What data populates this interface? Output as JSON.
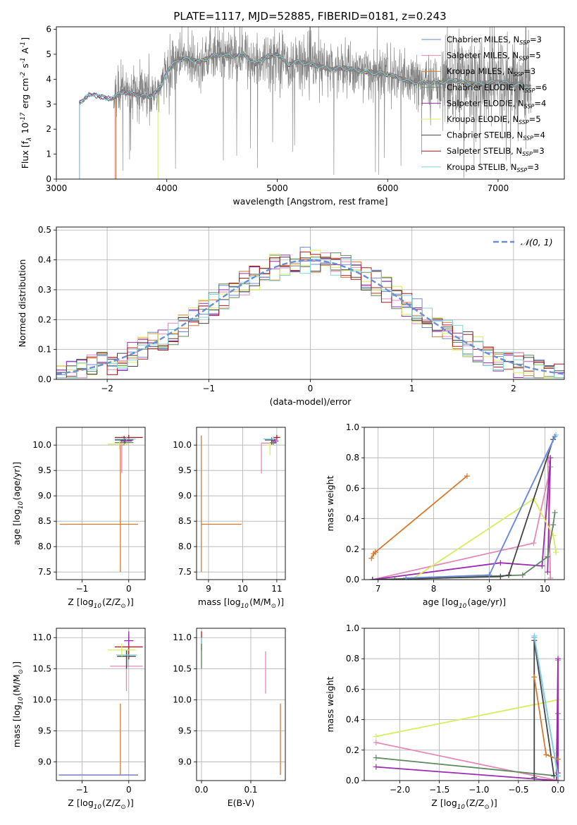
{
  "figure": {
    "title": "PLATE=1117, MJD=52885, FIBERID=0181, z=0.243"
  },
  "colors": {
    "Chabrier MILES": "#6f88d6",
    "Salpeter MILES": "#e48ab7",
    "Kroupa MILES": "#d47a2e",
    "Chabrier ELODIE": "#5c8a5e",
    "Salpeter ELODIE": "#9a2cb0",
    "Kroupa ELODIE": "#d8ec5c",
    "Chabrier STELIB": "#444444",
    "Salpeter STELIB": "#a41c1c",
    "Kroupa STELIB": "#7fd3df",
    "data": "#808080",
    "gauss": "#6a8ed6"
  },
  "chart_data": [
    {
      "id": "spectrum",
      "type": "line",
      "xlabel": "wavelength [Angstrom, rest frame]",
      "ylabel": "Flux [f$_\\lambda$ 10$^{-17}$ erg cm$^{-2}$ s$^{-1}$ A$^{-1}$]",
      "xlim": [
        3000,
        7600
      ],
      "ylim": [
        0,
        6.1
      ],
      "xticks": [
        "3000",
        "4000",
        "5000",
        "6000",
        "7000"
      ],
      "yticks": [
        "0",
        "1",
        "2",
        "3",
        "4",
        "5",
        "6"
      ],
      "legend": [
        {
          "name": "Chabrier MILES",
          "label": "Chabrier MILES, N",
          "sub": "SSP",
          "post": "=3"
        },
        {
          "name": "Salpeter MILES",
          "label": "Salpeter MILES, N",
          "sub": "SSP",
          "post": "=5"
        },
        {
          "name": "Kroupa MILES",
          "label": "Kroupa MILES, N",
          "sub": "SSP",
          "post": "=3"
        },
        {
          "name": "Chabrier ELODIE",
          "label": "Chabrier ELODIE, N",
          "sub": "SSP",
          "post": "=6"
        },
        {
          "name": "Salpeter ELODIE",
          "label": "Salpeter ELODIE, N",
          "sub": "SSP",
          "post": "=4"
        },
        {
          "name": "Kroupa ELODIE",
          "label": "Kroupa ELODIE, N",
          "sub": "SSP",
          "post": "=5"
        },
        {
          "name": "Chabrier STELIB",
          "label": "Chabrier STELIB, N",
          "sub": "SSP",
          "post": "=4"
        },
        {
          "name": "Salpeter STELIB",
          "label": "Salpeter STELIB, N",
          "sub": "SSP",
          "post": "=3"
        },
        {
          "name": "Kroupa STELIB",
          "label": "Kroupa STELIB, N",
          "sub": "SSP",
          "post": "=3"
        }
      ],
      "legend_position": "top-right",
      "continuum": [
        [
          3200,
          3.0
        ],
        [
          3300,
          3.4
        ],
        [
          3500,
          3.2
        ],
        [
          3600,
          3.5
        ],
        [
          3700,
          3.4
        ],
        [
          3850,
          3.3
        ],
        [
          3950,
          3.7
        ],
        [
          4000,
          4.3
        ],
        [
          4100,
          4.8
        ],
        [
          4200,
          4.8
        ],
        [
          4300,
          4.7
        ],
        [
          4400,
          4.9
        ],
        [
          4500,
          5.0
        ],
        [
          4600,
          4.9
        ],
        [
          4700,
          5.0
        ],
        [
          4800,
          4.6
        ],
        [
          4900,
          4.9
        ],
        [
          5000,
          5.0
        ],
        [
          5100,
          4.6
        ],
        [
          5200,
          4.7
        ],
        [
          5300,
          4.6
        ],
        [
          5400,
          4.5
        ],
        [
          5500,
          4.4
        ],
        [
          5600,
          4.45
        ],
        [
          5800,
          4.3
        ],
        [
          6000,
          4.2
        ],
        [
          6200,
          3.9
        ],
        [
          6400,
          3.85
        ],
        [
          6600,
          3.95
        ],
        [
          6800,
          3.8
        ],
        [
          7000,
          3.9
        ],
        [
          7200,
          3.75
        ],
        [
          7300,
          3.7
        ]
      ],
      "model_start": {
        "Chabrier MILES": 3540,
        "Salpeter MILES": 3530,
        "Kroupa MILES": 3540,
        "Chabrier ELODIE": 3210,
        "Salpeter ELODIE": 3210,
        "Kroupa ELODIE": 3920,
        "Chabrier STELIB": 3210,
        "Salpeter STELIB": 3210,
        "Kroupa STELIB": 3210
      },
      "data_range": [
        3520,
        7300
      ],
      "grid": false
    },
    {
      "id": "residuals",
      "type": "bar",
      "xlabel": "(data-model)/error",
      "ylabel": "Normed distribution",
      "xlim": [
        -2.5,
        2.5
      ],
      "ylim": [
        0,
        0.51
      ],
      "xticks": [
        "−2",
        "−1",
        "0",
        "1",
        "2"
      ],
      "yticks": [
        "0.0",
        "0.1",
        "0.2",
        "0.3",
        "0.4",
        "0.5"
      ],
      "gaussian_label": "𝒩(0, 1)",
      "bin_width": 0.1,
      "grid": true,
      "legend_position": "top-right"
    },
    {
      "id": "z-age",
      "type": "scatter",
      "xlabel": "Z [log$_{10}$(Z/Z$_\\odot$)]",
      "ylabel": "age  [log$_{10}$(age/yr)]",
      "xlim": [
        -1.55,
        0.35
      ],
      "ylim": [
        7.35,
        10.35
      ],
      "xticks": [
        "−1",
        "0"
      ],
      "yticks": [
        "7.5",
        "8.0",
        "8.5",
        "9.0",
        "9.5",
        "10.0"
      ],
      "grid": true,
      "errorbars": [
        {
          "model": "Kroupa MILES",
          "x": -0.18,
          "y": 8.44,
          "xerr": [
            1.3,
            0.38
          ],
          "yerr": [
            0.94,
            1.6
          ]
        },
        {
          "model": "Salpeter MILES",
          "x": -0.15,
          "y": 10.0,
          "xerr": [
            0.05,
            0.05
          ],
          "yerr": [
            0.55,
            0.12
          ]
        },
        {
          "model": "Chabrier STELIB",
          "x": -0.1,
          "y": 10.1,
          "xerr": [
            0.2,
            0.2
          ],
          "yerr": [
            0.1,
            0.08
          ]
        },
        {
          "model": "Salpeter STELIB",
          "x": 0.0,
          "y": 10.15,
          "xerr": [
            0.3,
            0.3
          ],
          "yerr": [
            0.05,
            0.05
          ]
        },
        {
          "model": "Kroupa STELIB",
          "x": -0.05,
          "y": 10.12,
          "xerr": [
            0.25,
            0.2
          ],
          "yerr": [
            0.05,
            0.05
          ]
        },
        {
          "model": "Chabrier ELODIE",
          "x": -0.1,
          "y": 10.05,
          "xerr": [
            0.2,
            0.2
          ],
          "yerr": [
            0.05,
            0.05
          ]
        },
        {
          "model": "Salpeter ELODIE",
          "x": -0.08,
          "y": 10.08,
          "xerr": [
            0.1,
            0.15
          ],
          "yerr": [
            0.05,
            0.05
          ]
        },
        {
          "model": "Kroupa ELODIE",
          "x": -0.2,
          "y": 10.02,
          "xerr": [
            0.25,
            0.2
          ],
          "yerr": [
            0.1,
            0.05
          ]
        }
      ]
    },
    {
      "id": "mass-age",
      "type": "scatter",
      "xlabel": "mass [log$_{10}$(M/M$_\\odot$)]",
      "ylabel": "",
      "xlim": [
        8.65,
        11.25
      ],
      "ylim": [
        7.35,
        10.35
      ],
      "xticks": [
        "9",
        "10",
        "11"
      ],
      "yticks": [
        "7.5",
        "8.0",
        "8.5",
        "9.0",
        "9.5",
        "10.0"
      ],
      "grid": true,
      "errorbars": [
        {
          "model": "Kroupa MILES",
          "x": 8.79,
          "y": 8.44,
          "xerr": [
            0.0,
            1.18
          ],
          "yerr": [
            0.94,
            1.75
          ]
        },
        {
          "model": "Salpeter MILES",
          "x": 10.55,
          "y": 10.04,
          "xerr": [
            0.0,
            0.45
          ],
          "yerr": [
            0.6,
            0.0
          ]
        },
        {
          "model": "Chabrier STELIB",
          "x": 10.85,
          "y": 10.1,
          "xerr": [
            0.2,
            0.1
          ],
          "yerr": [
            0.1,
            0.05
          ]
        },
        {
          "model": "Salpeter STELIB",
          "x": 11.0,
          "y": 10.15,
          "xerr": [
            0.1,
            0.1
          ],
          "yerr": [
            0.05,
            0.05
          ]
        },
        {
          "model": "Kroupa STELIB",
          "x": 10.9,
          "y": 10.12,
          "xerr": [
            0.3,
            0.05
          ],
          "yerr": [
            0.05,
            0.05
          ]
        },
        {
          "model": "Chabrier ELODIE",
          "x": 10.9,
          "y": 10.05,
          "xerr": [
            0.1,
            0.1
          ],
          "yerr": [
            0.05,
            0.05
          ]
        },
        {
          "model": "Salpeter ELODIE",
          "x": 10.95,
          "y": 10.08,
          "xerr": [
            0.1,
            0.1
          ],
          "yerr": [
            0.05,
            0.05
          ]
        },
        {
          "model": "Kroupa ELODIE",
          "x": 10.8,
          "y": 10.0,
          "xerr": [
            0.1,
            0.1
          ],
          "yerr": [
            0.2,
            0.05
          ]
        }
      ]
    },
    {
      "id": "age-weight",
      "type": "line",
      "xlabel": "age  [log$_{10}$(age/yr)]",
      "ylabel": "mass weight",
      "xlim": [
        6.75,
        10.35
      ],
      "ylim": [
        0,
        1.0
      ],
      "xticks": [
        "7",
        "8",
        "9",
        "10"
      ],
      "yticks": [
        "0.0",
        "0.2",
        "0.4",
        "0.6",
        "0.8",
        "1.0"
      ],
      "grid": true,
      "series": [
        {
          "model": "Kroupa MILES",
          "x": [
            6.88,
            6.92,
            6.95,
            8.6
          ],
          "y": [
            0.14,
            0.17,
            0.18,
            0.68
          ]
        },
        {
          "model": "Salpeter MILES",
          "x": [
            6.9,
            9.8,
            10.1,
            10.05,
            10.1
          ],
          "y": [
            0.0,
            0.24,
            0.74,
            0.81,
            0.01
          ]
        },
        {
          "model": "Salpeter ELODIE",
          "x": [
            6.9,
            9.2,
            9.95,
            10.1,
            10.05
          ],
          "y": [
            0.0,
            0.11,
            0.09,
            0.8,
            0.05
          ]
        },
        {
          "model": "Kroupa ELODIE",
          "x": [
            7.6,
            9.8,
            10.15,
            10.2
          ],
          "y": [
            0.0,
            0.53,
            0.29,
            0.18
          ]
        },
        {
          "model": "Chabrier ELODIE",
          "x": [
            7.3,
            9.6,
            10.05,
            10.15,
            10.18
          ],
          "y": [
            0.0,
            0.03,
            0.15,
            0.36,
            0.44
          ]
        },
        {
          "model": "Chabrier STELIB",
          "x": [
            6.9,
            9.2,
            9.35,
            10.15
          ],
          "y": [
            0.0,
            0.02,
            0.03,
            0.92
          ]
        },
        {
          "model": "Kroupa STELIB",
          "x": [
            7.5,
            9.0,
            10.2
          ],
          "y": [
            0.01,
            0.03,
            0.95
          ]
        },
        {
          "model": "Chabrier MILES",
          "x": [
            7.5,
            9.0,
            10.18
          ],
          "y": [
            0.01,
            0.03,
            0.94
          ]
        }
      ]
    },
    {
      "id": "z-mass",
      "type": "scatter",
      "xlabel": "Z [log$_{10}$(Z/Z$_\\odot$)]",
      "ylabel": "mass [log$_{10}$(M/M$_\\odot$)]",
      "xlim": [
        -1.55,
        0.35
      ],
      "ylim": [
        8.7,
        11.15
      ],
      "xticks": [
        "−1",
        "0"
      ],
      "yticks": [
        "9.0",
        "9.5",
        "10.0",
        "10.5",
        "11.0"
      ],
      "grid": true,
      "errorbars": [
        {
          "model": "Kroupa MILES",
          "x": -0.18,
          "y": 8.79,
          "xerr": [
            1.3,
            0.38
          ],
          "yerr": [
            0.0,
            1.15
          ]
        },
        {
          "model": "Chabrier MILES",
          "x": -0.5,
          "y": 8.79,
          "xerr": [
            1.0,
            0.7
          ],
          "yerr": [
            0.0,
            0.0
          ]
        },
        {
          "model": "Salpeter MILES",
          "x": -0.05,
          "y": 10.54,
          "xerr": [
            0.35,
            0.35
          ],
          "yerr": [
            0.4,
            0.0
          ]
        },
        {
          "model": "Salpeter STELIB",
          "x": 0.0,
          "y": 10.85,
          "xerr": [
            0.3,
            0.3
          ],
          "yerr": [
            0.2,
            0.2
          ]
        },
        {
          "model": "Chabrier STELIB",
          "x": -0.05,
          "y": 10.7,
          "xerr": [
            0.2,
            0.2
          ],
          "yerr": [
            0.2,
            0.1
          ]
        },
        {
          "model": "Kroupa STELIB",
          "x": -0.02,
          "y": 10.72,
          "xerr": [
            0.25,
            0.2
          ],
          "yerr": [
            0.2,
            0.1
          ]
        },
        {
          "model": "Kroupa ELODIE",
          "x": -0.15,
          "y": 10.8,
          "xerr": [
            0.3,
            0.3
          ],
          "yerr": [
            0.1,
            0.1
          ]
        },
        {
          "model": "Salpeter ELODIE",
          "x": 0.0,
          "y": 10.95,
          "xerr": [
            0.1,
            0.1
          ],
          "yerr": [
            0.1,
            0.15
          ]
        }
      ]
    },
    {
      "id": "ebv-mass",
      "type": "scatter",
      "xlabel": "E(B-V)",
      "ylabel": "",
      "xlim": [
        -0.01,
        0.17
      ],
      "ylim": [
        8.7,
        11.15
      ],
      "xticks": [
        "0.0",
        "0.1"
      ],
      "yticks": [
        "9.0",
        "9.5",
        "10.0",
        "10.5",
        "11.0"
      ],
      "grid": true,
      "errorbars": [
        {
          "model": "Kroupa MILES",
          "x": 0.16,
          "y": 8.79,
          "xerr": [
            0,
            0
          ],
          "yerr": [
            0.0,
            1.15
          ]
        },
        {
          "model": "Salpeter MILES",
          "x": 0.13,
          "y": 10.44,
          "xerr": [
            0,
            0
          ],
          "yerr": [
            0.34,
            0.34
          ]
        },
        {
          "model": "Salpeter STELIB",
          "x": 0.0,
          "y": 10.95,
          "xerr": [
            0,
            0
          ],
          "yerr": [
            0.15,
            0.15
          ]
        },
        {
          "model": "Kroupa STELIB",
          "x": 0.0,
          "y": 10.8,
          "xerr": [
            0,
            0
          ],
          "yerr": [
            0.3,
            0.2
          ]
        },
        {
          "model": "Chabrier ELODIE",
          "x": 0.0,
          "y": 10.7,
          "xerr": [
            0,
            0
          ],
          "yerr": [
            0.2,
            0.2
          ]
        }
      ]
    },
    {
      "id": "z-weight",
      "type": "line",
      "xlabel": "Z [log$_{10}$(Z/Z$_\\odot$)]",
      "ylabel": "mass weight",
      "xlim": [
        -2.45,
        0.08
      ],
      "ylim": [
        0,
        1.0
      ],
      "xticks": [
        "−2.0",
        "−1.5",
        "−1.0",
        "−0.5",
        "0.0"
      ],
      "yticks": [
        "0.0",
        "0.2",
        "0.4",
        "0.6",
        "0.8",
        "1.0"
      ],
      "grid": true,
      "series": [
        {
          "model": "Kroupa ELODIE",
          "x": [
            -2.3,
            0.0,
            -0.02
          ],
          "y": [
            0.29,
            0.53,
            0.18
          ]
        },
        {
          "model": "Salpeter MILES",
          "x": [
            -2.3,
            0.0,
            0.0
          ],
          "y": [
            0.25,
            0.0,
            0.79
          ]
        },
        {
          "model": "Chabrier ELODIE",
          "x": [
            -2.3,
            0.0,
            0.0
          ],
          "y": [
            0.15,
            0.03,
            0.44
          ]
        },
        {
          "model": "Salpeter ELODIE",
          "x": [
            -2.3,
            -0.02,
            0.0,
            0.0
          ],
          "y": [
            0.09,
            0.0,
            0.8,
            0.05
          ]
        },
        {
          "model": "Chabrier STELIB",
          "x": [
            -0.3,
            -0.3,
            -0.05
          ],
          "y": [
            0.02,
            0.92,
            0.03
          ]
        },
        {
          "model": "Kroupa MILES",
          "x": [
            -0.3,
            -0.15,
            0.0
          ],
          "y": [
            0.68,
            0.17,
            0.14
          ]
        },
        {
          "model": "Chabrier MILES",
          "x": [
            -0.3,
            0.0
          ],
          "y": [
            0.94,
            0.03
          ]
        },
        {
          "model": "Kroupa STELIB",
          "x": [
            -0.3,
            0.0
          ],
          "y": [
            0.95,
            0.03
          ]
        }
      ]
    }
  ]
}
